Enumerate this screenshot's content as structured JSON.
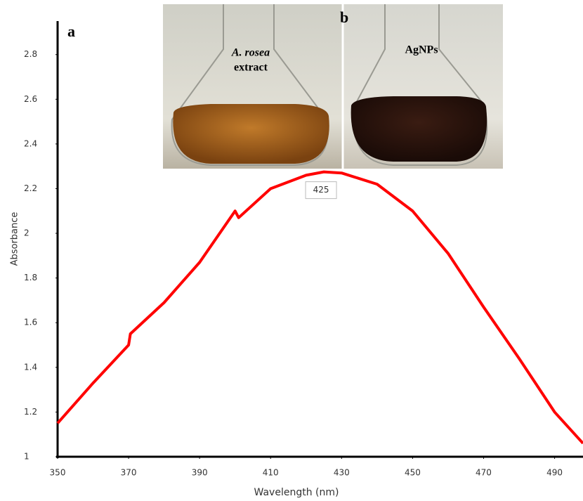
{
  "chart_data": {
    "type": "line",
    "x_label": "Wavelength (nm)",
    "y_label": "Absorbance",
    "panel_labels": [
      "a",
      "b"
    ],
    "inset_labels": [
      "A. rosea",
      "extract",
      "AgNPs"
    ],
    "annotation": "425",
    "x": [
      350,
      360,
      370,
      370.5,
      380,
      390,
      400,
      401,
      410,
      420,
      425,
      430,
      440,
      450,
      460,
      470,
      480,
      490,
      498
    ],
    "series": [
      {
        "color": "#ff0000",
        "values": [
          1.15,
          1.33,
          1.5,
          1.55,
          1.69,
          1.87,
          2.1,
          2.07,
          2.2,
          2.26,
          2.275,
          2.27,
          2.22,
          2.1,
          1.91,
          1.67,
          1.44,
          1.2,
          1.06
        ]
      }
    ],
    "xlim": [
      350,
      498
    ],
    "xticks": [
      350,
      370,
      390,
      410,
      430,
      450,
      470,
      490
    ],
    "ylim": [
      1,
      2.95
    ],
    "yticks": [
      1,
      1.2,
      1.4,
      1.6,
      1.8,
      2,
      2.2,
      2.4,
      2.6,
      2.8
    ],
    "grid": false
  }
}
